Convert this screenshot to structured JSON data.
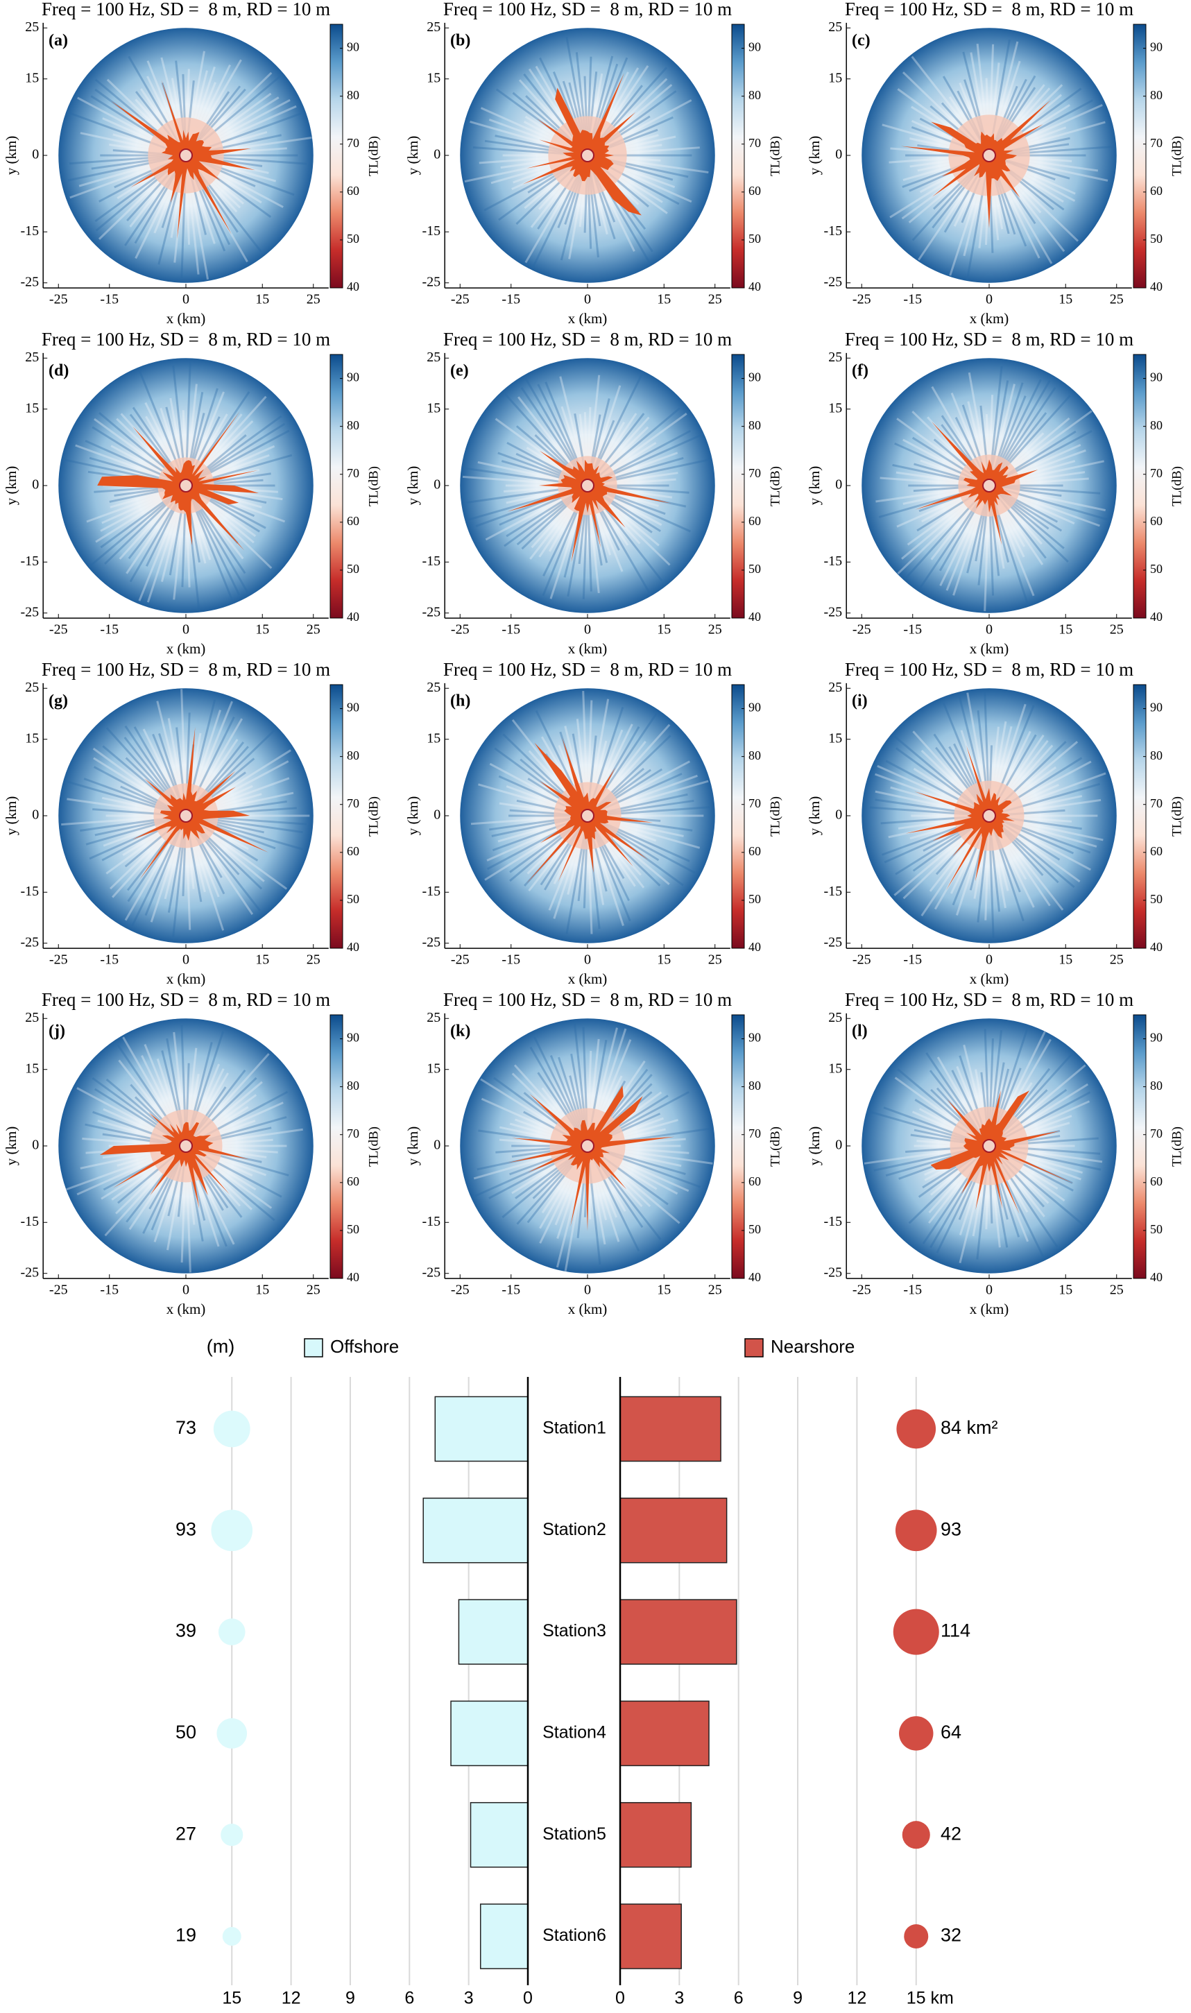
{
  "chart_data": [
    {
      "type": "polar-map",
      "title": "Freq = 100 Hz, SD =  8 m, RD = 10 m",
      "label": "(a)",
      "xlabel": "x (km)",
      "ylabel": "y (km)",
      "xlim": [
        -28,
        28
      ],
      "ylim": [
        -26,
        26
      ],
      "xticks": [
        -25,
        -15,
        0,
        15,
        25
      ],
      "yticks": [
        -25,
        -15,
        0,
        15,
        25
      ],
      "colorbar_label": "TL(dB)",
      "clim": [
        40,
        95
      ],
      "cticks": [
        40,
        50,
        60,
        70,
        80,
        90
      ],
      "colormap": [
        "#7a0a1e",
        "#c62d2a",
        "#ec8a6c",
        "#fbe2d6",
        "#f2f5f8",
        "#b7d6ea",
        "#5a9bcb",
        "#0b4b8c"
      ]
    },
    {
      "type": "polar-map",
      "title": "Freq = 100 Hz, SD =  8 m, RD = 10 m",
      "label": "(b)",
      "xlabel": "x (km)",
      "ylabel": "y (km)",
      "xlim": [
        -28,
        28
      ],
      "ylim": [
        -26,
        26
      ],
      "xticks": [
        -25,
        -15,
        0,
        15,
        25
      ],
      "yticks": [
        -25,
        -15,
        0,
        15,
        25
      ],
      "colorbar_label": "TL(dB)",
      "clim": [
        40,
        95
      ],
      "cticks": [
        40,
        50,
        60,
        70,
        80,
        90
      ],
      "colormap": [
        "#7a0a1e",
        "#c62d2a",
        "#ec8a6c",
        "#fbe2d6",
        "#f2f5f8",
        "#b7d6ea",
        "#5a9bcb",
        "#0b4b8c"
      ]
    },
    {
      "type": "polar-map",
      "title": "Freq = 100 Hz, SD =  8 m, RD = 10 m",
      "label": "(c)",
      "xlabel": "x (km)",
      "ylabel": "y (km)",
      "xlim": [
        -28,
        28
      ],
      "ylim": [
        -26,
        26
      ],
      "xticks": [
        -25,
        -15,
        0,
        15,
        25
      ],
      "yticks": [
        -25,
        -15,
        0,
        15,
        25
      ],
      "colorbar_label": "TL(dB)",
      "clim": [
        40,
        95
      ],
      "cticks": [
        40,
        50,
        60,
        70,
        80,
        90
      ],
      "colormap": [
        "#7a0a1e",
        "#c62d2a",
        "#ec8a6c",
        "#fbe2d6",
        "#f2f5f8",
        "#b7d6ea",
        "#5a9bcb",
        "#0b4b8c"
      ]
    },
    {
      "type": "polar-map",
      "title": "Freq = 100 Hz, SD =  8 m, RD = 10 m",
      "label": "(d)",
      "xlabel": "x (km)",
      "ylabel": "y (km)",
      "xlim": [
        -28,
        28
      ],
      "ylim": [
        -26,
        26
      ],
      "xticks": [
        -25,
        -15,
        0,
        15,
        25
      ],
      "yticks": [
        -25,
        -15,
        0,
        15,
        25
      ],
      "colorbar_label": "TL(dB)",
      "clim": [
        40,
        95
      ],
      "cticks": [
        40,
        50,
        60,
        70,
        80,
        90
      ],
      "colormap": [
        "#7a0a1e",
        "#c62d2a",
        "#ec8a6c",
        "#fbe2d6",
        "#f2f5f8",
        "#b7d6ea",
        "#5a9bcb",
        "#0b4b8c"
      ]
    },
    {
      "type": "polar-map",
      "title": "Freq = 100 Hz, SD =  8 m, RD = 10 m",
      "label": "(e)",
      "xlabel": "x (km)",
      "ylabel": "y (km)",
      "xlim": [
        -28,
        28
      ],
      "ylim": [
        -26,
        26
      ],
      "xticks": [
        -25,
        -15,
        0,
        15,
        25
      ],
      "yticks": [
        -25,
        -15,
        0,
        15,
        25
      ],
      "colorbar_label": "TL(dB)",
      "clim": [
        40,
        95
      ],
      "cticks": [
        40,
        50,
        60,
        70,
        80,
        90
      ],
      "colormap": [
        "#7a0a1e",
        "#c62d2a",
        "#ec8a6c",
        "#fbe2d6",
        "#f2f5f8",
        "#b7d6ea",
        "#5a9bcb",
        "#0b4b8c"
      ]
    },
    {
      "type": "polar-map",
      "title": "Freq = 100 Hz, SD =  8 m, RD = 10 m",
      "label": "(f)",
      "xlabel": "x (km)",
      "ylabel": "y (km)",
      "xlim": [
        -28,
        28
      ],
      "ylim": [
        -26,
        26
      ],
      "xticks": [
        -25,
        -15,
        0,
        15,
        25
      ],
      "yticks": [
        -25,
        -15,
        0,
        15,
        25
      ],
      "colorbar_label": "TL(dB)",
      "clim": [
        40,
        95
      ],
      "cticks": [
        40,
        50,
        60,
        70,
        80,
        90
      ],
      "colormap": [
        "#7a0a1e",
        "#c62d2a",
        "#ec8a6c",
        "#fbe2d6",
        "#f2f5f8",
        "#b7d6ea",
        "#5a9bcb",
        "#0b4b8c"
      ]
    },
    {
      "type": "polar-map",
      "title": "Freq = 100 Hz, SD =  8 m, RD = 10 m",
      "label": "(g)",
      "xlabel": "x (km)",
      "ylabel": "y (km)",
      "xlim": [
        -28,
        28
      ],
      "ylim": [
        -26,
        26
      ],
      "xticks": [
        -25,
        -15,
        0,
        15,
        25
      ],
      "yticks": [
        -25,
        -15,
        0,
        15,
        25
      ],
      "colorbar_label": "TL(dB)",
      "clim": [
        40,
        95
      ],
      "cticks": [
        40,
        50,
        60,
        70,
        80,
        90
      ],
      "colormap": [
        "#7a0a1e",
        "#c62d2a",
        "#ec8a6c",
        "#fbe2d6",
        "#f2f5f8",
        "#b7d6ea",
        "#5a9bcb",
        "#0b4b8c"
      ]
    },
    {
      "type": "polar-map",
      "title": "Freq = 100 Hz, SD =  8 m, RD = 10 m",
      "label": "(h)",
      "xlabel": "x (km)",
      "ylabel": "y (km)",
      "xlim": [
        -28,
        28
      ],
      "ylim": [
        -26,
        26
      ],
      "xticks": [
        -25,
        -15,
        0,
        15,
        25
      ],
      "yticks": [
        -25,
        -15,
        0,
        15,
        25
      ],
      "colorbar_label": "TL(dB)",
      "clim": [
        40,
        95
      ],
      "cticks": [
        40,
        50,
        60,
        70,
        80,
        90
      ],
      "colormap": [
        "#7a0a1e",
        "#c62d2a",
        "#ec8a6c",
        "#fbe2d6",
        "#f2f5f8",
        "#b7d6ea",
        "#5a9bcb",
        "#0b4b8c"
      ]
    },
    {
      "type": "polar-map",
      "title": "Freq = 100 Hz, SD =  8 m, RD = 10 m",
      "label": "(i)",
      "xlabel": "x (km)",
      "ylabel": "y (km)",
      "xlim": [
        -28,
        28
      ],
      "ylim": [
        -26,
        26
      ],
      "xticks": [
        -25,
        -15,
        0,
        15,
        25
      ],
      "yticks": [
        -25,
        -15,
        0,
        15,
        25
      ],
      "colorbar_label": "TL(dB)",
      "clim": [
        40,
        95
      ],
      "cticks": [
        40,
        50,
        60,
        70,
        80,
        90
      ],
      "colormap": [
        "#7a0a1e",
        "#c62d2a",
        "#ec8a6c",
        "#fbe2d6",
        "#f2f5f8",
        "#b7d6ea",
        "#5a9bcb",
        "#0b4b8c"
      ]
    },
    {
      "type": "polar-map",
      "title": "Freq = 100 Hz, SD =  8 m, RD = 10 m",
      "label": "(j)",
      "xlabel": "x (km)",
      "ylabel": "y (km)",
      "xlim": [
        -28,
        28
      ],
      "ylim": [
        -26,
        26
      ],
      "xticks": [
        -25,
        -15,
        0,
        15,
        25
      ],
      "yticks": [
        -25,
        -15,
        0,
        15,
        25
      ],
      "colorbar_label": "TL(dB)",
      "clim": [
        40,
        95
      ],
      "cticks": [
        40,
        50,
        60,
        70,
        80,
        90
      ],
      "colormap": [
        "#7a0a1e",
        "#c62d2a",
        "#ec8a6c",
        "#fbe2d6",
        "#f2f5f8",
        "#b7d6ea",
        "#5a9bcb",
        "#0b4b8c"
      ]
    },
    {
      "type": "polar-map",
      "title": "Freq = 100 Hz, SD =  8 m, RD = 10 m",
      "label": "(k)",
      "xlabel": "x (km)",
      "ylabel": "y (km)",
      "xlim": [
        -28,
        28
      ],
      "ylim": [
        -26,
        26
      ],
      "xticks": [
        -25,
        -15,
        0,
        15,
        25
      ],
      "yticks": [
        -25,
        -15,
        0,
        15,
        25
      ],
      "colorbar_label": "TL(dB)",
      "clim": [
        40,
        95
      ],
      "cticks": [
        40,
        50,
        60,
        70,
        80,
        90
      ],
      "colormap": [
        "#7a0a1e",
        "#c62d2a",
        "#ec8a6c",
        "#fbe2d6",
        "#f2f5f8",
        "#b7d6ea",
        "#5a9bcb",
        "#0b4b8c"
      ]
    },
    {
      "type": "polar-map",
      "title": "Freq = 100 Hz, SD =  8 m, RD = 10 m",
      "label": "(l)",
      "xlabel": "x (km)",
      "ylabel": "y (km)",
      "xlim": [
        -28,
        28
      ],
      "ylim": [
        -26,
        26
      ],
      "xticks": [
        -25,
        -15,
        0,
        15,
        25
      ],
      "yticks": [
        -25,
        -15,
        0,
        15,
        25
      ],
      "colorbar_label": "TL(dB)",
      "clim": [
        40,
        95
      ],
      "cticks": [
        40,
        50,
        60,
        70,
        80,
        90
      ],
      "colormap": [
        "#7a0a1e",
        "#c62d2a",
        "#ec8a6c",
        "#fbe2d6",
        "#f2f5f8",
        "#b7d6ea",
        "#5a9bcb",
        "#0b4b8c"
      ]
    },
    {
      "type": "butterfly-bar",
      "unit_label": "(m)",
      "categories": [
        "Station1",
        "Station2",
        "Station3",
        "Station4",
        "Station5",
        "Station6"
      ],
      "xlim": [
        0,
        16.3
      ],
      "left_xticks": [
        15,
        12,
        9,
        6,
        3,
        0
      ],
      "right_xticks": [
        0,
        3,
        6,
        9,
        12,
        {
          "value": 15,
          "label": "15 km"
        }
      ],
      "grid": true,
      "series": [
        {
          "name": "Offshore",
          "color": "#d7f8fb",
          "side": "left",
          "values": [
            4.7,
            5.3,
            3.5,
            3.9,
            2.9,
            2.4
          ],
          "bubble": {
            "at": 15,
            "color": "#dcfafc",
            "values": [
              73,
              93,
              39,
              50,
              27,
              19
            ]
          }
        },
        {
          "name": "Nearshore",
          "color": "#d2544a",
          "side": "right",
          "values": [
            5.1,
            5.4,
            5.9,
            4.5,
            3.6,
            3.1
          ],
          "bubble": {
            "at": 15,
            "color": "#d24d43",
            "values": [
              84,
              93,
              114,
              64,
              42,
              32
            ],
            "value_labels": [
              "84 km²",
              "93",
              "114",
              "64",
              "42",
              "32"
            ]
          }
        }
      ]
    }
  ]
}
